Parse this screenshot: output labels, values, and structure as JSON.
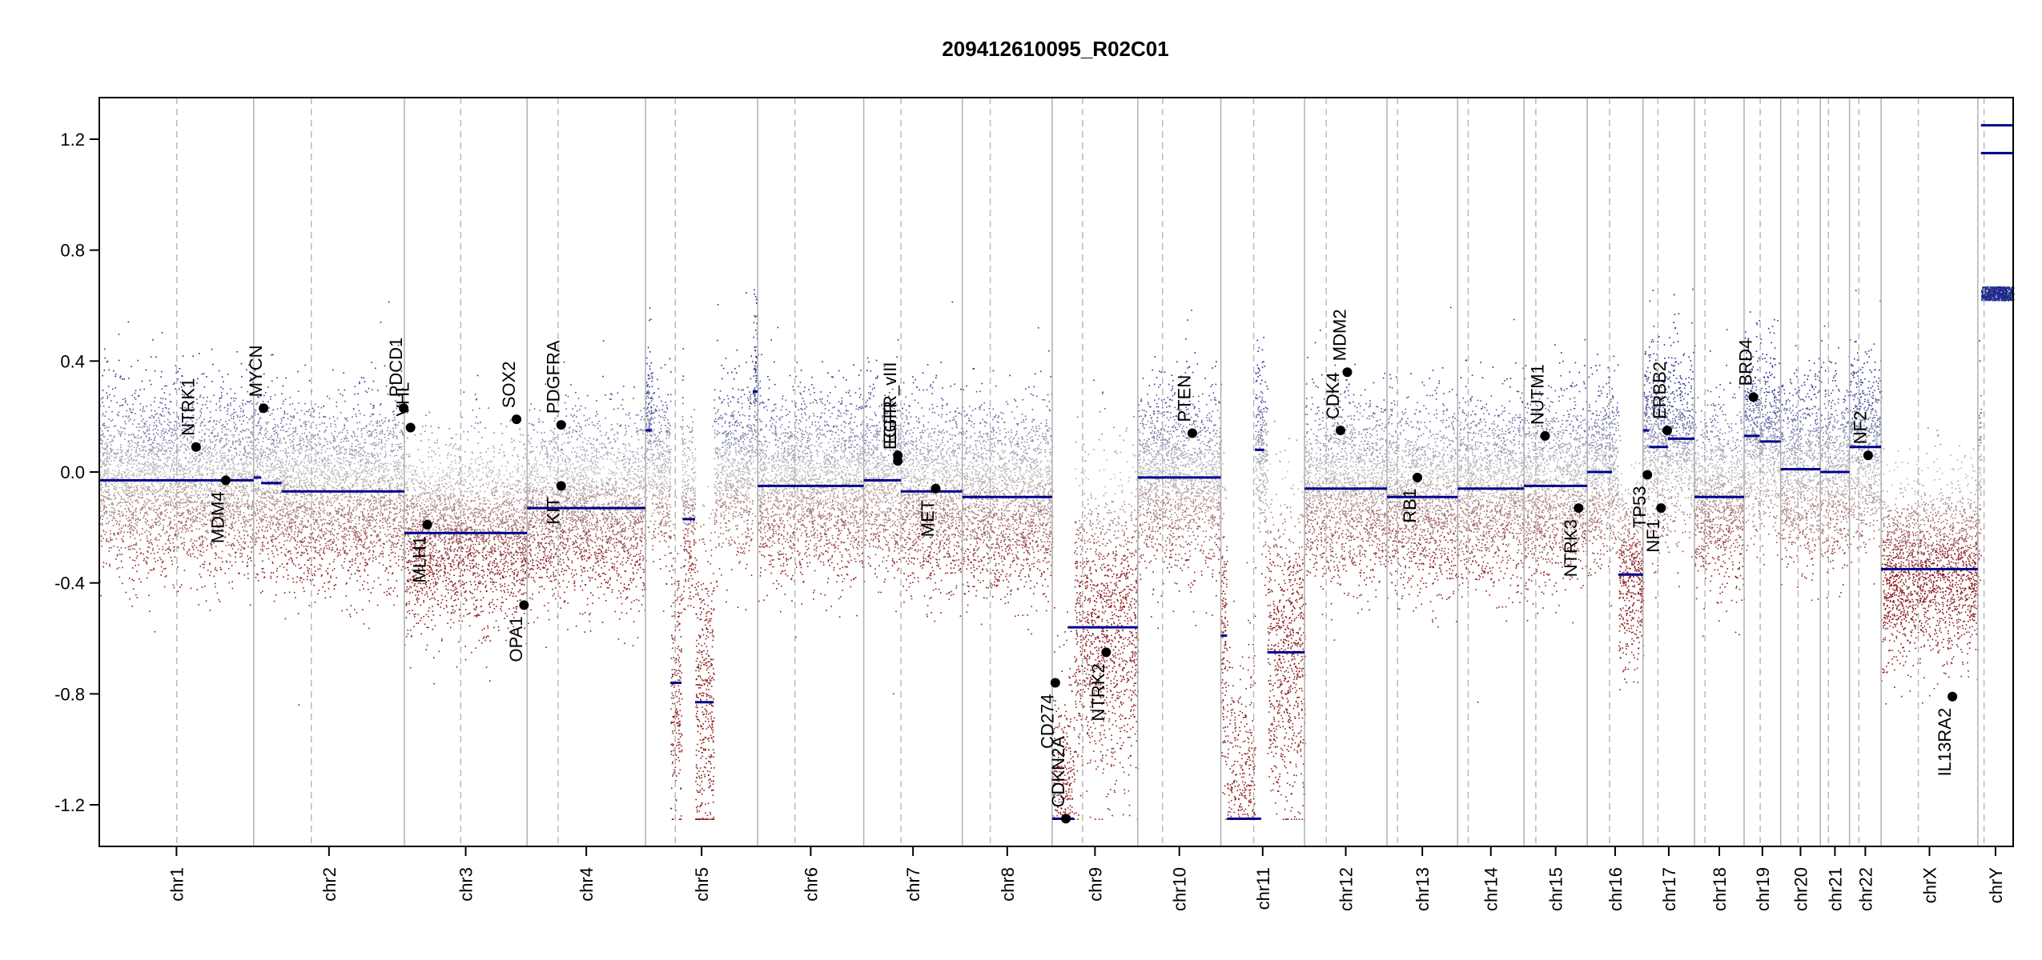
{
  "chart_data": {
    "type": "scatter",
    "title": "209412610095_R02C01",
    "xlabel": "",
    "ylabel": "",
    "ylim": [
      -1.35,
      1.35
    ],
    "yticks": [
      -1.2,
      -0.8,
      -0.4,
      0.0,
      0.4,
      0.8,
      1.2
    ],
    "ytick_labels": [
      "-1.2",
      "-0.8",
      "-0.4",
      "0.0",
      "0.4",
      "0.8",
      "1.2"
    ],
    "grid": false,
    "colors": {
      "gain": "#1f2a8c",
      "loss": "#8b1a1a",
      "neutral": "#bcbcbc",
      "segment": "#00008b",
      "boundary": "#b0b0b0",
      "centromere": "#b8b8b8"
    },
    "chromosomes": [
      {
        "name": "chr1",
        "size": 249
      },
      {
        "name": "chr2",
        "size": 243
      },
      {
        "name": "chr3",
        "size": 198
      },
      {
        "name": "chr4",
        "size": 191
      },
      {
        "name": "chr5",
        "size": 181
      },
      {
        "name": "chr6",
        "size": 171
      },
      {
        "name": "chr7",
        "size": 159
      },
      {
        "name": "chr8",
        "size": 145
      },
      {
        "name": "chr9",
        "size": 138
      },
      {
        "name": "chr10",
        "size": 134
      },
      {
        "name": "chr11",
        "size": 135
      },
      {
        "name": "chr12",
        "size": 133
      },
      {
        "name": "chr13",
        "size": 114
      },
      {
        "name": "chr14",
        "size": 107
      },
      {
        "name": "chr15",
        "size": 102
      },
      {
        "name": "chr16",
        "size": 90
      },
      {
        "name": "chr17",
        "size": 83
      },
      {
        "name": "chr18",
        "size": 80
      },
      {
        "name": "chr19",
        "size": 59
      },
      {
        "name": "chr20",
        "size": 64
      },
      {
        "name": "chr21",
        "size": 47
      },
      {
        "name": "chr22",
        "size": 51
      },
      {
        "name": "chrX",
        "size": 156
      },
      {
        "name": "chrY",
        "size": 57
      }
    ],
    "centromeres": [
      {
        "chr": "chr1",
        "pos": 125
      },
      {
        "chr": "chr2",
        "pos": 93
      },
      {
        "chr": "chr3",
        "pos": 91
      },
      {
        "chr": "chr4",
        "pos": 50
      },
      {
        "chr": "chr5",
        "pos": 48
      },
      {
        "chr": "chr6",
        "pos": 60
      },
      {
        "chr": "chr7",
        "pos": 60
      },
      {
        "chr": "chr8",
        "pos": 45
      },
      {
        "chr": "chr9",
        "pos": 49
      },
      {
        "chr": "chr10",
        "pos": 40
      },
      {
        "chr": "chr11",
        "pos": 53
      },
      {
        "chr": "chr12",
        "pos": 35
      },
      {
        "chr": "chr13",
        "pos": 17
      },
      {
        "chr": "chr14",
        "pos": 17
      },
      {
        "chr": "chr15",
        "pos": 19
      },
      {
        "chr": "chr16",
        "pos": 36
      },
      {
        "chr": "chr17",
        "pos": 24
      },
      {
        "chr": "chr18",
        "pos": 17
      },
      {
        "chr": "chr19",
        "pos": 26
      },
      {
        "chr": "chr20",
        "pos": 28
      },
      {
        "chr": "chr21",
        "pos": 13
      },
      {
        "chr": "chr22",
        "pos": 15
      },
      {
        "chr": "chrX",
        "pos": 60
      },
      {
        "chr": "chrY",
        "pos": 10
      }
    ],
    "segments": [
      {
        "chr": "chr1",
        "start": 0,
        "end": 249,
        "value": -0.03
      },
      {
        "chr": "chr2",
        "start": 0,
        "end": 12,
        "value": -0.02
      },
      {
        "chr": "chr2",
        "start": 12,
        "end": 45,
        "value": -0.04
      },
      {
        "chr": "chr2",
        "start": 45,
        "end": 243,
        "value": -0.07
      },
      {
        "chr": "chr3",
        "start": 0,
        "end": 198,
        "value": -0.22
      },
      {
        "chr": "chr4",
        "start": 0,
        "end": 191,
        "value": -0.13
      },
      {
        "chr": "chr5",
        "start": 0,
        "end": 10,
        "value": 0.15
      },
      {
        "chr": "chr5",
        "start": 40,
        "end": 58,
        "value": -0.76
      },
      {
        "chr": "chr5",
        "start": 60,
        "end": 80,
        "value": -0.17
      },
      {
        "chr": "chr5",
        "start": 80,
        "end": 110,
        "value": -0.83
      },
      {
        "chr": "chr5",
        "start": 173,
        "end": 181,
        "value": 0.29
      },
      {
        "chr": "chr6",
        "start": 0,
        "end": 171,
        "value": -0.05
      },
      {
        "chr": "chr7",
        "start": 0,
        "end": 60,
        "value": -0.03
      },
      {
        "chr": "chr7",
        "start": 60,
        "end": 159,
        "value": -0.07
      },
      {
        "chr": "chr8",
        "start": 0,
        "end": 145,
        "value": -0.09
      },
      {
        "chr": "chr9",
        "start": 0,
        "end": 35,
        "value": -1.25
      },
      {
        "chr": "chr9",
        "start": 25,
        "end": 138,
        "value": -0.56
      },
      {
        "chr": "chr10",
        "start": 0,
        "end": 134,
        "value": -0.02
      },
      {
        "chr": "chr11",
        "start": 0,
        "end": 10,
        "value": -0.59
      },
      {
        "chr": "chr11",
        "start": 10,
        "end": 65,
        "value": -1.25
      },
      {
        "chr": "chr11",
        "start": 55,
        "end": 70,
        "value": 0.08
      },
      {
        "chr": "chr11",
        "start": 75,
        "end": 135,
        "value": -0.65
      },
      {
        "chr": "chr12",
        "start": 0,
        "end": 133,
        "value": -0.06
      },
      {
        "chr": "chr13",
        "start": 0,
        "end": 114,
        "value": -0.09
      },
      {
        "chr": "chr14",
        "start": 0,
        "end": 107,
        "value": -0.06
      },
      {
        "chr": "chr15",
        "start": 0,
        "end": 102,
        "value": -0.05
      },
      {
        "chr": "chr16",
        "start": 0,
        "end": 40,
        "value": 0.0
      },
      {
        "chr": "chr16",
        "start": 50,
        "end": 90,
        "value": -0.37
      },
      {
        "chr": "chr17",
        "start": 0,
        "end": 10,
        "value": 0.15
      },
      {
        "chr": "chr17",
        "start": 10,
        "end": 40,
        "value": 0.09
      },
      {
        "chr": "chr17",
        "start": 40,
        "end": 83,
        "value": 0.12
      },
      {
        "chr": "chr18",
        "start": 0,
        "end": 80,
        "value": -0.09
      },
      {
        "chr": "chr19",
        "start": 0,
        "end": 25,
        "value": 0.13
      },
      {
        "chr": "chr19",
        "start": 25,
        "end": 59,
        "value": 0.11
      },
      {
        "chr": "chr20",
        "start": 0,
        "end": 64,
        "value": 0.01
      },
      {
        "chr": "chr21",
        "start": 0,
        "end": 47,
        "value": 0.0
      },
      {
        "chr": "chr22",
        "start": 0,
        "end": 51,
        "value": 0.09
      },
      {
        "chr": "chrX",
        "start": 0,
        "end": 156,
        "value": -0.35
      },
      {
        "chr": "chrY",
        "start": 5,
        "end": 57,
        "value": 1.15
      },
      {
        "chr": "chrY",
        "start": 5,
        "end": 57,
        "value": 1.25
      }
    ],
    "genes": [
      {
        "name": "NTRK1",
        "chr": "chr1",
        "pos": 156,
        "value": 0.09,
        "label_side": "above"
      },
      {
        "name": "MDM4",
        "chr": "chr1",
        "pos": 204,
        "value": -0.03,
        "label_side": "below"
      },
      {
        "name": "MYCN",
        "chr": "chr2",
        "pos": 16,
        "value": 0.23,
        "label_side": "above"
      },
      {
        "name": "PDCD1",
        "chr": "chr2",
        "pos": 242,
        "value": 0.23,
        "label_side": "above"
      },
      {
        "name": "VHL",
        "chr": "chr3",
        "pos": 10,
        "value": 0.16,
        "label_side": "above"
      },
      {
        "name": "MLH1",
        "chr": "chr3",
        "pos": 37,
        "value": -0.19,
        "label_side": "below"
      },
      {
        "name": "SOX2",
        "chr": "chr3",
        "pos": 181,
        "value": 0.19,
        "label_side": "above"
      },
      {
        "name": "OPA1",
        "chr": "chr3",
        "pos": 193,
        "value": -0.48,
        "label_side": "below"
      },
      {
        "name": "PDGFRA",
        "chr": "chr4",
        "pos": 55,
        "value": 0.17,
        "label_side": "above"
      },
      {
        "name": "KIT",
        "chr": "chr4",
        "pos": 55,
        "value": -0.05,
        "label_side": "below"
      },
      {
        "name": "EGFR",
        "chr": "chr7",
        "pos": 55,
        "value": 0.04,
        "label_side": "above"
      },
      {
        "name": "EGFR_vIII",
        "chr": "chr7",
        "pos": 55,
        "value": 0.06,
        "label_side": "above"
      },
      {
        "name": "MET",
        "chr": "chr7",
        "pos": 116,
        "value": -0.06,
        "label_side": "below"
      },
      {
        "name": "CDKN2A",
        "chr": "chr9",
        "pos": 22,
        "value": -1.25,
        "label_side": "above"
      },
      {
        "name": "CD274",
        "chr": "chr9",
        "pos": 5,
        "value": -0.76,
        "label_side": "below"
      },
      {
        "name": "NTRK2",
        "chr": "chr9",
        "pos": 87,
        "value": -0.65,
        "label_side": "below"
      },
      {
        "name": "PTEN",
        "chr": "chr10",
        "pos": 88,
        "value": 0.14,
        "label_side": "above"
      },
      {
        "name": "CDK4",
        "chr": "chr12",
        "pos": 58,
        "value": 0.15,
        "label_side": "above"
      },
      {
        "name": "MDM2",
        "chr": "chr12",
        "pos": 69,
        "value": 0.36,
        "label_side": "above"
      },
      {
        "name": "RB1",
        "chr": "chr13",
        "pos": 49,
        "value": -0.02,
        "label_side": "below"
      },
      {
        "name": "NUTM1",
        "chr": "chr15",
        "pos": 34,
        "value": 0.13,
        "label_side": "above"
      },
      {
        "name": "NTRK3",
        "chr": "chr15",
        "pos": 88,
        "value": -0.13,
        "label_side": "below"
      },
      {
        "name": "TP53",
        "chr": "chr17",
        "pos": 7,
        "value": -0.01,
        "label_side": "below"
      },
      {
        "name": "ERBB2",
        "chr": "chr17",
        "pos": 39,
        "value": 0.15,
        "label_side": "above"
      },
      {
        "name": "NF1",
        "chr": "chr17",
        "pos": 29,
        "value": -0.13,
        "label_side": "below"
      },
      {
        "name": "BRD4",
        "chr": "chr19",
        "pos": 15,
        "value": 0.27,
        "label_side": "above"
      },
      {
        "name": "NF2",
        "chr": "chr22",
        "pos": 30,
        "value": 0.06,
        "label_side": "above"
      },
      {
        "name": "IL13RA2",
        "chr": "chrX",
        "pos": 115,
        "value": -0.81,
        "label_side": "below"
      }
    ]
  }
}
